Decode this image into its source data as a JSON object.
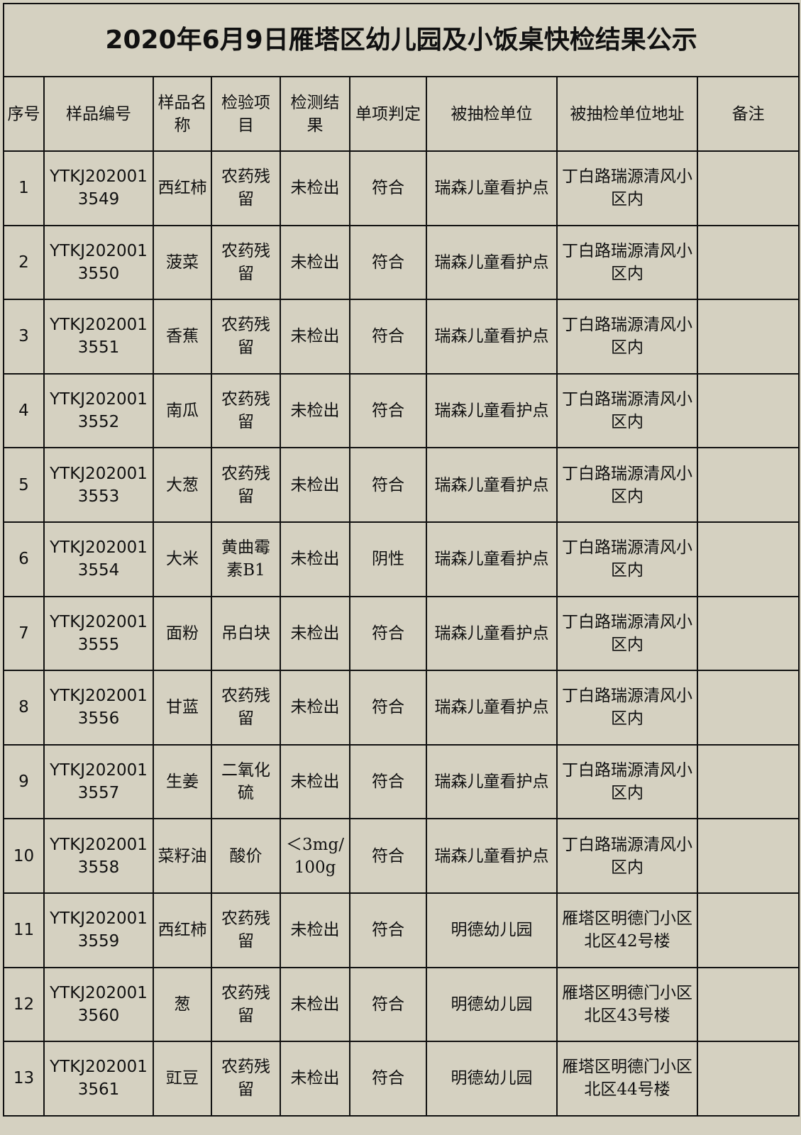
{
  "title": "2020年6月9日雁塔区幼儿园及小饭桌快检结果公示",
  "headers": [
    "序号",
    "样品编号",
    "样品名称",
    "检验项目",
    "检测结果",
    "单项判定",
    "被抽检单位",
    "被抽检单位地址",
    "备注"
  ],
  "rows": [
    {
      "no": "1",
      "code": "YTKJ2020013549",
      "name": "西红柿",
      "item": "农药残留",
      "result": "未检出",
      "judge": "符合",
      "unit": "瑞森儿童看护点",
      "addr": "丁白路瑞源清风小区内",
      "note": ""
    },
    {
      "no": "2",
      "code": "YTKJ2020013550",
      "name": "菠菜",
      "item": "农药残留",
      "result": "未检出",
      "judge": "符合",
      "unit": "瑞森儿童看护点",
      "addr": "丁白路瑞源清风小区内",
      "note": ""
    },
    {
      "no": "3",
      "code": "YTKJ2020013551",
      "name": "香蕉",
      "item": "农药残留",
      "result": "未检出",
      "judge": "符合",
      "unit": "瑞森儿童看护点",
      "addr": "丁白路瑞源清风小区内",
      "note": ""
    },
    {
      "no": "4",
      "code": "YTKJ2020013552",
      "name": "南瓜",
      "item": "农药残留",
      "result": "未检出",
      "judge": "符合",
      "unit": "瑞森儿童看护点",
      "addr": "丁白路瑞源清风小区内",
      "note": ""
    },
    {
      "no": "5",
      "code": "YTKJ2020013553",
      "name": "大葱",
      "item": "农药残留",
      "result": "未检出",
      "judge": "符合",
      "unit": "瑞森儿童看护点",
      "addr": "丁白路瑞源清风小区内",
      "note": ""
    },
    {
      "no": "6",
      "code": "YTKJ2020013554",
      "name": "大米",
      "item": "黄曲霉素B1",
      "result": "未检出",
      "judge": "阴性",
      "unit": "瑞森儿童看护点",
      "addr": "丁白路瑞源清风小区内",
      "note": ""
    },
    {
      "no": "7",
      "code": "YTKJ2020013555",
      "name": "面粉",
      "item": "吊白块",
      "result": "未检出",
      "judge": "符合",
      "unit": "瑞森儿童看护点",
      "addr": "丁白路瑞源清风小区内",
      "note": ""
    },
    {
      "no": "8",
      "code": "YTKJ2020013556",
      "name": "甘蓝",
      "item": "农药残留",
      "result": "未检出",
      "judge": "符合",
      "unit": "瑞森儿童看护点",
      "addr": "丁白路瑞源清风小区内",
      "note": ""
    },
    {
      "no": "9",
      "code": "YTKJ2020013557",
      "name": "生姜",
      "item": "二氧化硫",
      "result": "未检出",
      "judge": "符合",
      "unit": "瑞森儿童看护点",
      "addr": "丁白路瑞源清风小区内",
      "note": ""
    },
    {
      "no": "10",
      "code": "YTKJ2020013558",
      "name": "菜籽油",
      "item": "酸价",
      "result": "＜3mg/100g",
      "judge": "符合",
      "unit": "瑞森儿童看护点",
      "addr": "丁白路瑞源清风小区内",
      "note": ""
    },
    {
      "no": "11",
      "code": "YTKJ2020013559",
      "name": "西红柿",
      "item": "农药残留",
      "result": "未检出",
      "judge": "符合",
      "unit": "明德幼儿园",
      "addr": "雁塔区明德门小区北区42号楼",
      "note": ""
    },
    {
      "no": "12",
      "code": "YTKJ2020013560",
      "name": "葱",
      "item": "农药残留",
      "result": "未检出",
      "judge": "符合",
      "unit": "明德幼儿园",
      "addr": "雁塔区明德门小区北区43号楼",
      "note": ""
    },
    {
      "no": "13",
      "code": "YTKJ2020013561",
      "name": "豇豆",
      "item": "农药残留",
      "result": "未检出",
      "judge": "符合",
      "unit": "明德幼儿园",
      "addr": "雁塔区明德门小区北区44号楼",
      "note": ""
    }
  ]
}
